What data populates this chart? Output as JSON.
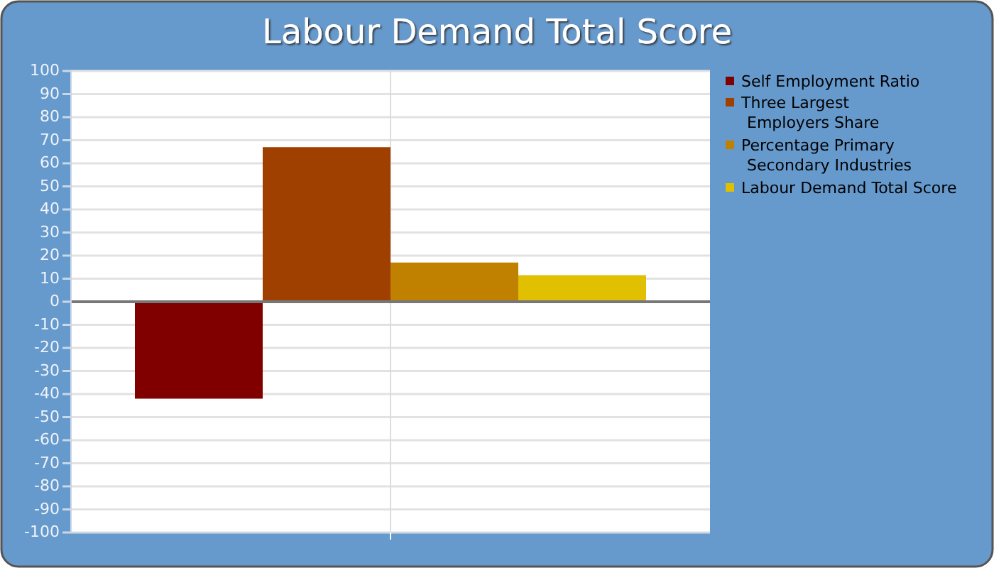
{
  "chart_data": {
    "type": "bar",
    "title": "Labour Demand Total Score",
    "categories": [
      null
    ],
    "series": [
      {
        "name": "Self Employment Ratio",
        "color": "#800000",
        "values": [
          -42
        ]
      },
      {
        "name": "Three Largest Employers Share",
        "color": "#a04000",
        "values": [
          67
        ]
      },
      {
        "name": "Percentage Primary Secondary Industries",
        "color": "#c08000",
        "values": [
          17
        ]
      },
      {
        "name": "Labour Demand Total Score",
        "color": "#e0c000",
        "values": [
          11.5
        ]
      }
    ],
    "ylim": [
      -100,
      100
    ],
    "yticks": [
      -100,
      -90,
      -80,
      -70,
      -60,
      -50,
      -40,
      -30,
      -20,
      -10,
      0,
      10,
      20,
      30,
      40,
      50,
      60,
      70,
      80,
      90,
      100
    ],
    "grid": true,
    "legend": "right"
  }
}
